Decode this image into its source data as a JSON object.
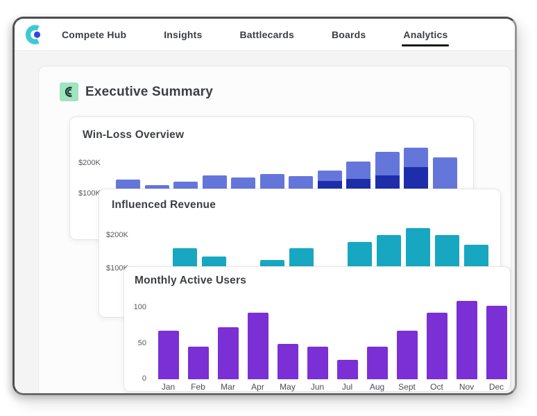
{
  "nav": {
    "logo_name": "klue-logo",
    "items": [
      {
        "label": "Compete Hub",
        "active": false
      },
      {
        "label": "Insights",
        "active": false
      },
      {
        "label": "Battlecards",
        "active": false
      },
      {
        "label": "Boards",
        "active": false
      },
      {
        "label": "Analytics",
        "active": true
      }
    ]
  },
  "page": {
    "title": "Executive Summary"
  },
  "chart_data": [
    {
      "type": "bar",
      "title": "Win-Loss Overview",
      "subtype": "stacked",
      "y_axis_labels": [
        "$200K",
        "$100K"
      ],
      "x_labels_visible": false,
      "bars": 12,
      "totals_k": [
        146,
        128,
        139,
        160,
        153,
        165,
        158,
        177,
        207,
        240,
        253,
        221
      ],
      "dark_segment_k": [
        0,
        0,
        0,
        0,
        0,
        0,
        0,
        142,
        149,
        160,
        188,
        0
      ],
      "colors": {
        "bar": "#6576db",
        "segment": "#1e2eab"
      },
      "note": "lower portion of chart hidden behind overlapping card"
    },
    {
      "type": "bar",
      "title": "Influenced Revenue",
      "y_axis_labels": [
        "$200K",
        "$100K"
      ],
      "x_labels_visible": false,
      "bars": 11,
      "values_k": [
        163,
        138,
        108,
        127,
        163,
        108,
        181,
        202,
        223,
        202,
        173
      ],
      "colors": {
        "bar": "#17a7c1"
      },
      "note": "lower portion of chart hidden behind overlapping card"
    },
    {
      "type": "bar",
      "title": "Monthly Active Users",
      "categories": [
        "Jan",
        "Feb",
        "Mar",
        "Apr",
        "May",
        "Jun",
        "Jul",
        "Aug",
        "Sept",
        "Oct",
        "Nov",
        "Dec"
      ],
      "values": [
        68,
        46,
        73,
        93,
        50,
        46,
        27,
        46,
        68,
        93,
        110,
        103
      ],
      "y_ticks": [
        0,
        50,
        100
      ],
      "ylim": [
        0,
        115
      ],
      "colors": {
        "bar": "#7a30d5"
      },
      "grid": false,
      "legend": false
    }
  ]
}
